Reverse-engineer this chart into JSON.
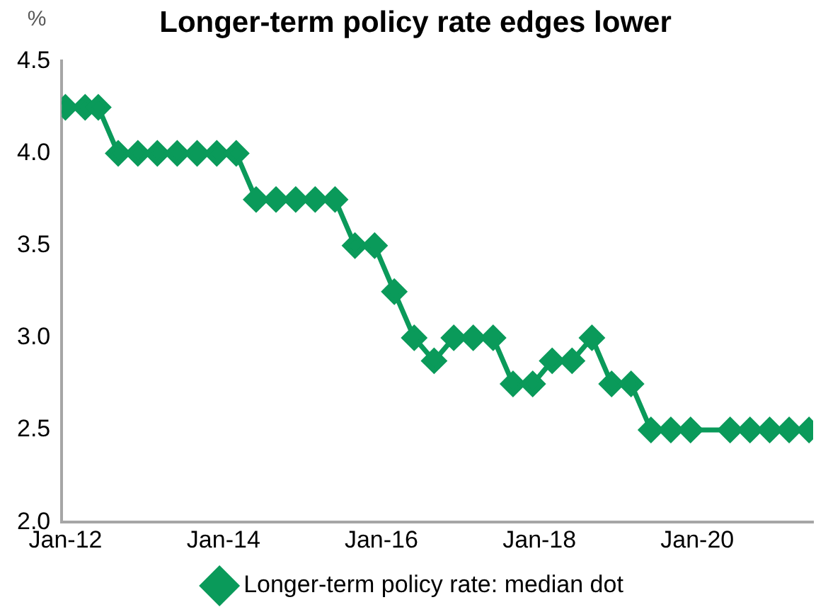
{
  "chart_data": {
    "type": "line",
    "title": "Longer-term policy rate edges lower",
    "ylabel": "%",
    "x": [
      "2012-01",
      "2012-04",
      "2012-06",
      "2012-09",
      "2012-12",
      "2013-03",
      "2013-06",
      "2013-09",
      "2013-12",
      "2014-03",
      "2014-06",
      "2014-09",
      "2014-12",
      "2015-03",
      "2015-06",
      "2015-09",
      "2015-12",
      "2016-03",
      "2016-06",
      "2016-09",
      "2016-12",
      "2017-03",
      "2017-06",
      "2017-09",
      "2017-12",
      "2018-03",
      "2018-06",
      "2018-09",
      "2018-12",
      "2019-03",
      "2019-06",
      "2019-09",
      "2019-12",
      "2020-06",
      "2020-09",
      "2020-12",
      "2021-03",
      "2021-06"
    ],
    "series": [
      {
        "name": "Longer-term policy rate: median dot",
        "color": "#0a9a5a",
        "values": [
          4.25,
          4.25,
          4.25,
          4.0,
          4.0,
          4.0,
          4.0,
          4.0,
          4.0,
          4.0,
          3.75,
          3.75,
          3.75,
          3.75,
          3.75,
          3.5,
          3.5,
          3.25,
          3.0,
          2.875,
          3.0,
          3.0,
          3.0,
          2.75,
          2.75,
          2.875,
          2.875,
          3.0,
          2.75,
          2.75,
          2.5,
          2.5,
          2.5,
          2.5,
          2.5,
          2.5,
          2.5,
          2.5
        ]
      }
    ],
    "xlim": [
      "2011-12-15",
      "2021-06-20"
    ],
    "xticks": [
      {
        "value": "2012-01",
        "label": "Jan-12"
      },
      {
        "value": "2014-01",
        "label": "Jan-14"
      },
      {
        "value": "2016-01",
        "label": "Jan-16"
      },
      {
        "value": "2018-01",
        "label": "Jan-18"
      },
      {
        "value": "2020-01",
        "label": "Jan-20"
      }
    ],
    "ylim": [
      2.0,
      4.5
    ],
    "yticks": [
      {
        "value": 2.0,
        "label": "2.0"
      },
      {
        "value": 2.5,
        "label": "2.5"
      },
      {
        "value": 3.0,
        "label": "3.0"
      },
      {
        "value": 3.5,
        "label": "3.5"
      },
      {
        "value": 4.0,
        "label": "4.0"
      },
      {
        "value": 4.5,
        "label": "4.5"
      }
    ],
    "grid": false,
    "legend": "bottom",
    "marker": "diamond",
    "line_style": "solid"
  }
}
